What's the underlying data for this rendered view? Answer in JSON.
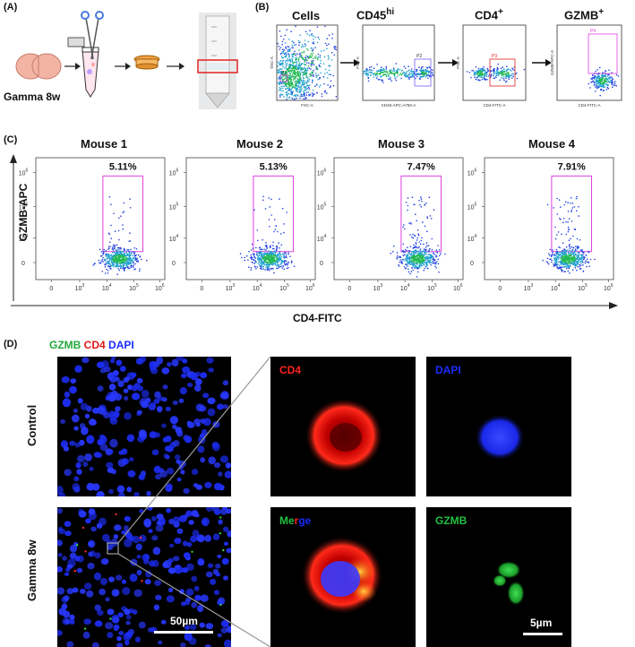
{
  "panel_a": {
    "label": "(A)",
    "group_label": "Gamma 8w"
  },
  "panel_b": {
    "label": "(B)",
    "gates": [
      {
        "title": "Cells",
        "sup": "",
        "gate_label": "P1",
        "x_axis": "FSC-A",
        "y_axis": "SSC-A"
      },
      {
        "title": "CD45",
        "sup": "hi",
        "gate_label": "P2",
        "x_axis": "CD45-APC-A750-A",
        "y_axis": "FSC-A"
      },
      {
        "title": "CD4",
        "sup": "+",
        "gate_label": "P3",
        "x_axis": "CD4-FITC-A",
        "y_axis": "FSC-A"
      },
      {
        "title": "GZMB",
        "sup": "+",
        "gate_label": "P4",
        "x_axis": "CD4-FITC-A",
        "y_axis": "GZMB-APC-A"
      }
    ]
  },
  "panel_c": {
    "label": "(C)",
    "y_axis_label": "GZMB-APC",
    "x_axis_label": "CD4-FITC",
    "mice": [
      {
        "title": "Mouse 1",
        "percent": "5.11%"
      },
      {
        "title": "Mouse 2",
        "percent": "5.13%"
      },
      {
        "title": "Mouse 3",
        "percent": "7.47%"
      },
      {
        "title": "Mouse 4",
        "percent": "7.91%"
      }
    ],
    "x_ticks": [
      "0",
      "10",
      "10",
      "10",
      "10"
    ],
    "x_tick_exps": [
      "",
      "3",
      "4",
      "5",
      "6"
    ],
    "y_ticks": [
      "0",
      "10",
      "10",
      "10"
    ],
    "y_tick_exps": [
      "",
      "4",
      "5",
      "6"
    ]
  },
  "chart_data": {
    "type": "scatter",
    "title": "",
    "xlabel": "CD4-FITC",
    "ylabel": "GZMB-APC",
    "x_scale": "biexponential",
    "y_scale": "biexponential",
    "series": [
      {
        "name": "Mouse 1",
        "gate_percent": 5.11
      },
      {
        "name": "Mouse 2",
        "gate_percent": 5.13
      },
      {
        "name": "Mouse 3",
        "gate_percent": 7.47
      },
      {
        "name": "Mouse 4",
        "gate_percent": 7.91
      }
    ]
  },
  "panel_d": {
    "label": "(D)",
    "legend": {
      "gzmb": "GZMB",
      "cd4": "CD4",
      "dapi": "DAPI"
    },
    "rows": {
      "control": "Control",
      "gamma": "Gamma 8w"
    },
    "channels": {
      "cd4": "CD4",
      "dapi": "DAPI",
      "merge_me": "Me",
      "merge_r": "r",
      "merge_ge": "ge",
      "gzmb": "GZMB"
    },
    "scale_big": "50µm",
    "scale_small": "5µm"
  },
  "colors": {
    "gate_pink": "#e040e0",
    "dapi_blue": "#1a2cff",
    "cd4_red": "#ff2020",
    "gzmb_green": "#22c040",
    "sample_box": "#e02020"
  }
}
